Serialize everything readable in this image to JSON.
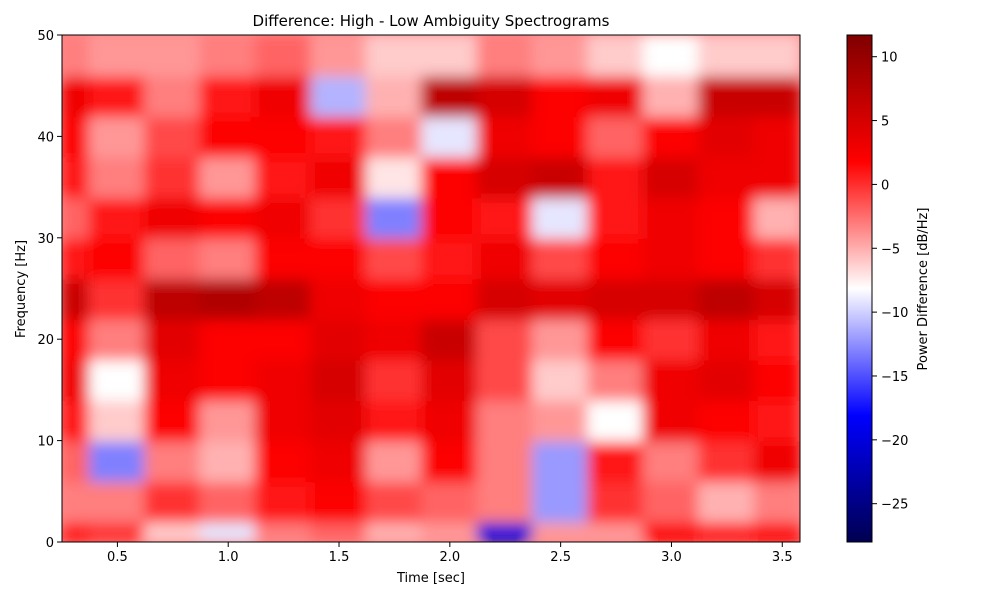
{
  "chart_data": {
    "type": "heatmap",
    "title": "Difference: High - Low Ambiguity Spectrograms",
    "xlabel": "Time [sec]",
    "ylabel": "Frequency [Hz]",
    "xlim": [
      0.25,
      3.58
    ],
    "ylim": [
      0,
      50
    ],
    "x_ticks": [
      0.5,
      1.0,
      1.5,
      2.0,
      2.5,
      3.0,
      3.5
    ],
    "x_tick_labels": [
      "0.5",
      "1.0",
      "1.5",
      "2.0",
      "2.5",
      "3.0",
      "3.5"
    ],
    "y_ticks": [
      0,
      10,
      20,
      30,
      40,
      50
    ],
    "y_tick_labels": [
      "0",
      "10",
      "20",
      "30",
      "40",
      "50"
    ],
    "colormap": "seismic",
    "colorbar": {
      "label": "Power Difference [dB/Hz]",
      "vmin": -28,
      "vmax": 11.7,
      "center": -8,
      "ticks": [
        10,
        5,
        0,
        -5,
        -10,
        -15,
        -20,
        -25
      ],
      "tick_labels": [
        "10",
        "5",
        "0",
        "−5",
        "−10",
        "−15",
        "−20",
        "−25"
      ]
    },
    "grid": false,
    "x": [
      0.25,
      0.5,
      0.75,
      1.0,
      1.25,
      1.5,
      1.75,
      2.0,
      2.25,
      2.5,
      2.75,
      3.0,
      3.25,
      3.5
    ],
    "y": [
      0,
      4,
      8,
      12,
      16,
      20,
      24,
      28,
      32,
      36,
      40,
      44,
      48
    ],
    "z": [
      [
        1,
        0,
        -6,
        -9,
        -3,
        -2,
        -5,
        -4,
        -20,
        -4,
        -4,
        2,
        1,
        2
      ],
      [
        -3,
        -3,
        0,
        -2,
        1,
        2,
        -1,
        -2,
        -3,
        -12,
        0,
        -2,
        -5,
        -3
      ],
      [
        -2,
        -13,
        -3,
        -5,
        2,
        3,
        -4,
        2,
        -3,
        -12,
        1,
        -3,
        0,
        3
      ],
      [
        1,
        -6,
        2,
        -4,
        3,
        4,
        1,
        3,
        -3,
        -4,
        -8,
        3,
        2,
        1
      ],
      [
        3,
        -8,
        3,
        2,
        3,
        5,
        0,
        4,
        -1,
        -6,
        -3,
        3,
        4,
        2
      ],
      [
        2,
        -3,
        4,
        2,
        2,
        4,
        3,
        6,
        -1,
        -4,
        2,
        0,
        3,
        1
      ],
      [
        6,
        0,
        7,
        8,
        7,
        3,
        2,
        2,
        5,
        4,
        5,
        5,
        7,
        5
      ],
      [
        1,
        2,
        -2,
        -3,
        2,
        2,
        -1,
        1,
        3,
        -1,
        2,
        3,
        2,
        0
      ],
      [
        -2,
        1,
        3,
        2,
        3,
        0,
        -13,
        2,
        1,
        -9,
        1,
        3,
        2,
        -5
      ],
      [
        1,
        -3,
        0,
        -4,
        1,
        3,
        -7,
        2,
        5,
        6,
        1,
        5,
        3,
        3
      ],
      [
        2,
        -4,
        -1,
        2,
        2,
        1,
        -3,
        -9,
        3,
        2,
        -2,
        2,
        4,
        3
      ],
      [
        3,
        1,
        -3,
        1,
        3,
        -11,
        -5,
        7,
        5,
        2,
        3,
        -5,
        6,
        6
      ],
      [
        -3,
        -4,
        -4,
        -3,
        -2,
        -4,
        -6,
        -6,
        -3,
        -4,
        -6,
        -8,
        -6,
        -6
      ]
    ]
  }
}
